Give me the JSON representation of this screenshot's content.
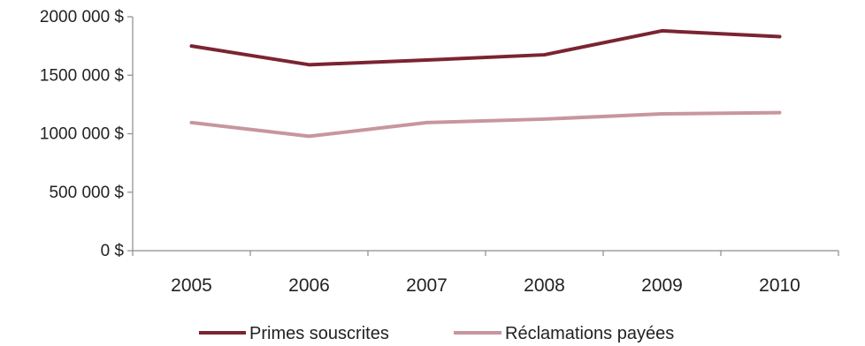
{
  "chart_data": {
    "type": "line",
    "x": [
      "2005",
      "2006",
      "2007",
      "2008",
      "2009",
      "2010"
    ],
    "ylim": [
      0,
      2000000
    ],
    "yticks": [
      0,
      500000,
      1000000,
      1500000,
      2000000
    ],
    "ytick_labels": [
      "0 $",
      "500 000 $",
      "1000 000 $",
      "1500 000 $",
      "2000 000 $"
    ],
    "grid": false,
    "legend": "bottom",
    "series": [
      {
        "name": "Primes souscrites",
        "color": "#7b2431",
        "values": [
          1750000,
          1590000,
          1630000,
          1675000,
          1880000,
          1830000
        ]
      },
      {
        "name": "Réclamations payées",
        "color": "#c8969d",
        "values": [
          1095000,
          978000,
          1095000,
          1125000,
          1170000,
          1180000
        ]
      }
    ]
  }
}
